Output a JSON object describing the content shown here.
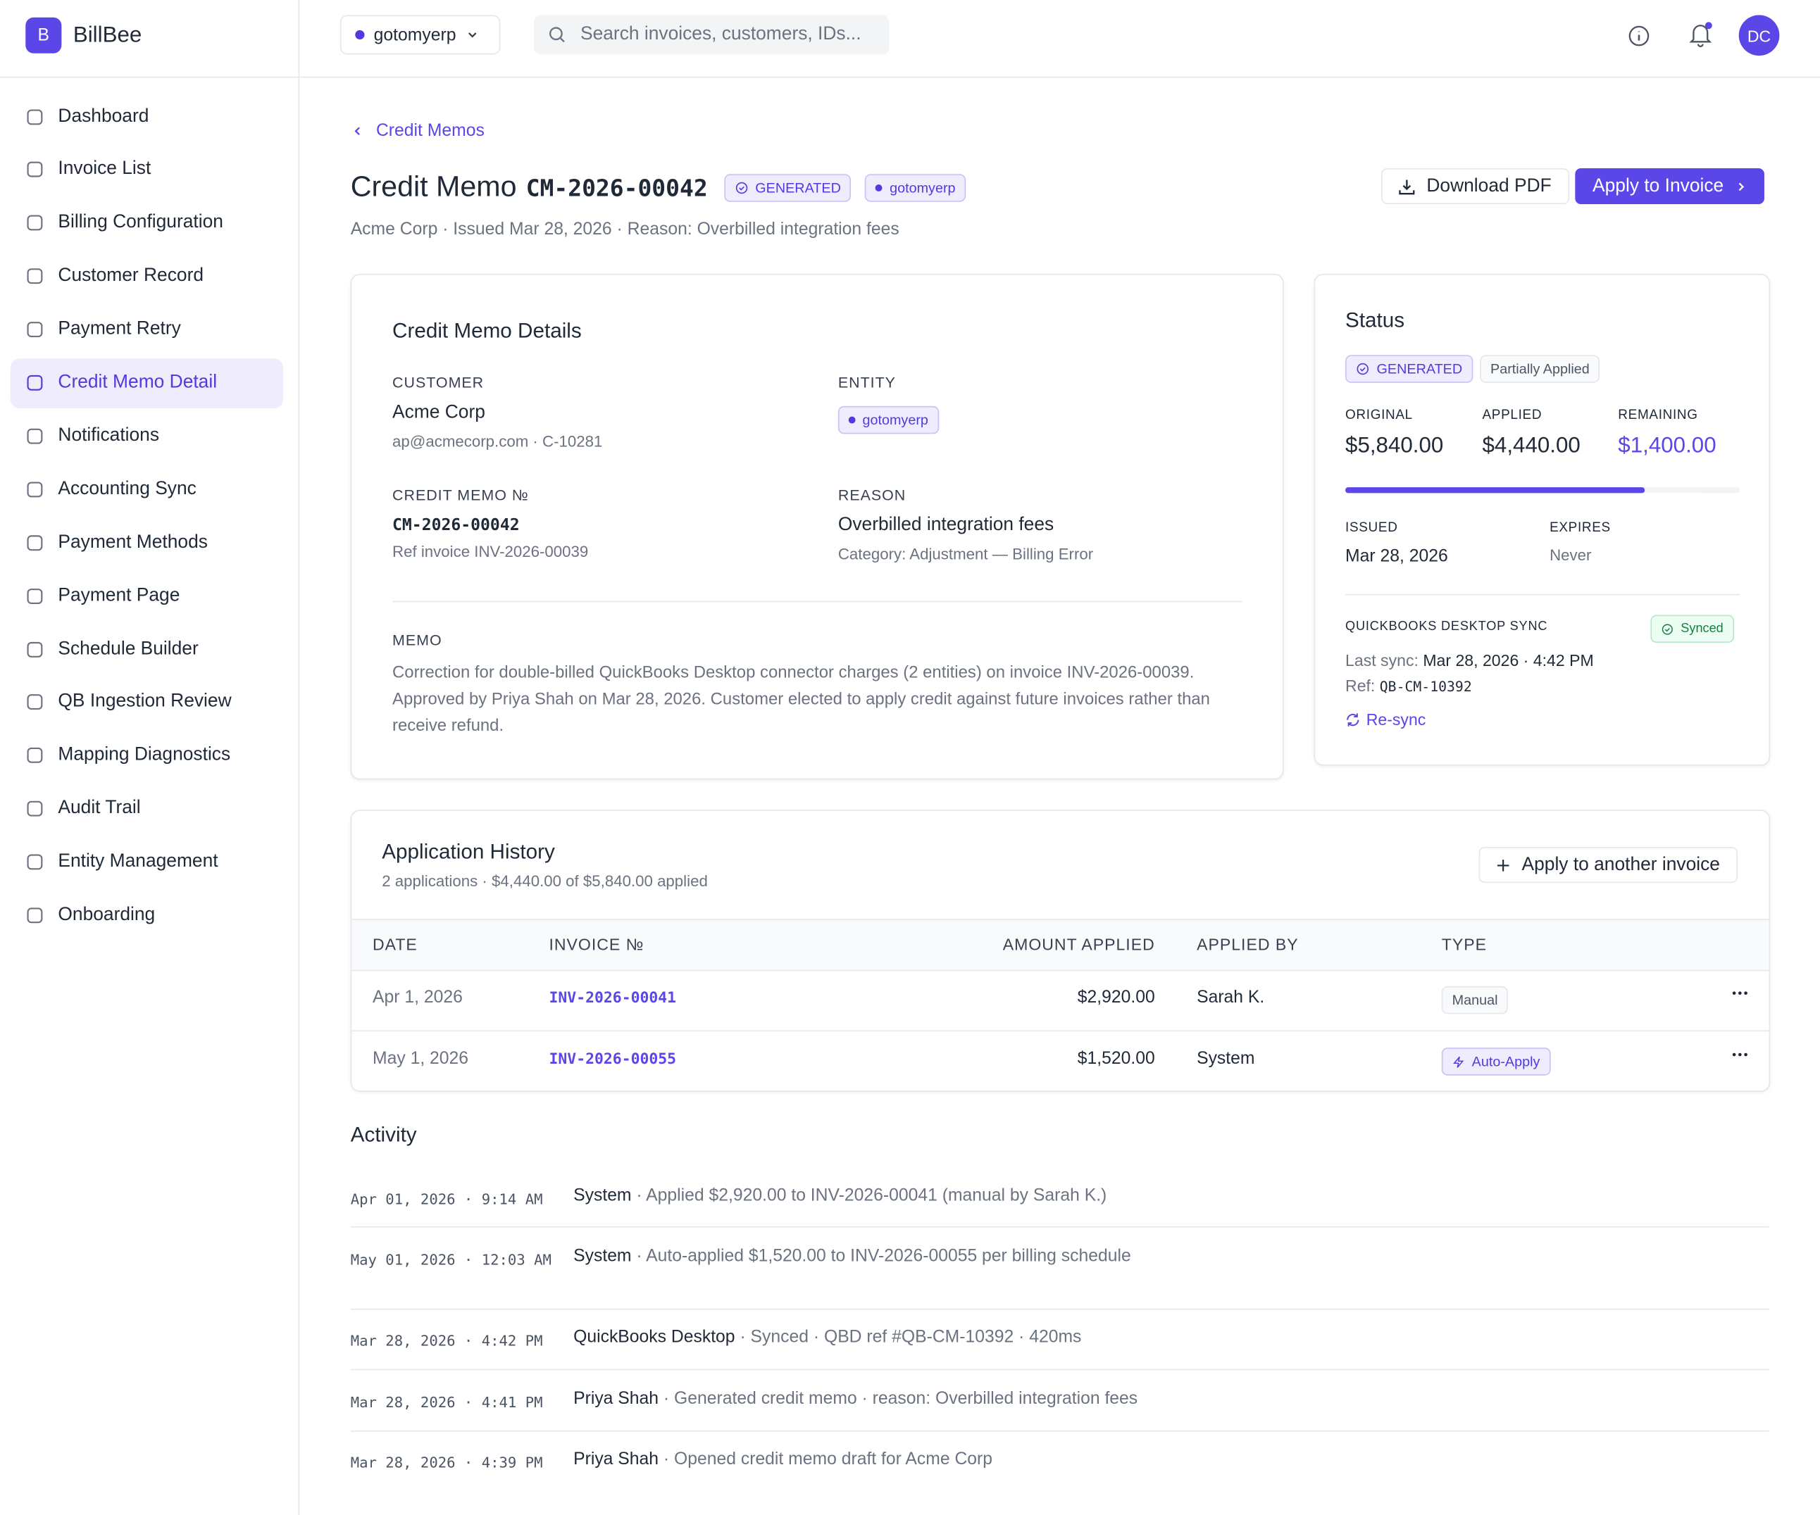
{
  "brand": {
    "logo": "B",
    "name": "BillBee"
  },
  "nav": [
    "Dashboard",
    "Invoice List",
    "Billing Configuration",
    "Customer Record",
    "Payment Retry",
    "Credit Memo Detail",
    "Notifications",
    "Accounting Sync",
    "Payment Methods",
    "Payment Page",
    "Schedule Builder",
    "QB Ingestion Review",
    "Mapping Diagnostics",
    "Audit Trail",
    "Entity Management",
    "Onboarding"
  ],
  "topbar": {
    "entity": "gotomyerp",
    "search_placeholder": "Search invoices, customers, IDs...",
    "avatar": "DC"
  },
  "breadcrumb": "Credit Memos",
  "page": {
    "title": "Credit Memo",
    "memo_id": "CM-2026-00042",
    "badge_status": "GENERATED",
    "badge_entity": "gotomyerp",
    "subtitle": "Acme Corp · Issued Mar 28, 2026 · Reason: Overbilled integration fees",
    "download": "Download PDF",
    "apply": "Apply to Invoice"
  },
  "details": {
    "title": "Credit Memo Details",
    "customer": {
      "label": "CUSTOMER",
      "name": "Acme Corp",
      "sub": "ap@acmecorp.com · C-10281"
    },
    "entity": {
      "label": "ENTITY",
      "value": "gotomyerp"
    },
    "number": {
      "label": "CREDIT MEMO №",
      "value": "CM-2026-00042",
      "sub": "Ref invoice INV-2026-00039"
    },
    "reason": {
      "label": "REASON",
      "value": "Overbilled integration fees",
      "sub": "Category: Adjustment — Billing Error"
    },
    "memo": {
      "label": "MEMO",
      "text": "Correction for double-billed QuickBooks Desktop connector charges (2 entities) on invoice INV-2026-00039. Approved by Priya Shah on Mar 28, 2026. Customer elected to apply credit against future invoices rather than receive refund."
    }
  },
  "status": {
    "title": "Status",
    "badge_status": "GENERATED",
    "badge_applied": "Partially Applied",
    "original": {
      "label": "ORIGINAL",
      "value": "$5,840.00"
    },
    "applied": {
      "label": "APPLIED",
      "value": "$4,440.00"
    },
    "remaining": {
      "label": "REMAINING",
      "value": "$1,400.00"
    },
    "issued": {
      "label": "ISSUED",
      "value": "Mar 28, 2026"
    },
    "expires": {
      "label": "EXPIRES",
      "value": "Never"
    },
    "sync": {
      "label": "QUICKBOOKS DESKTOP SYNC",
      "badge": "Synced",
      "last_label": "Last sync:",
      "last_value": "Mar 28, 2026 · 4:42 PM",
      "ref_label": "Ref:",
      "ref_value": "QB-CM-10392",
      "resync": "Re-sync"
    }
  },
  "history": {
    "title": "Application History",
    "subtitle": "2 applications · $4,440.00 of $5,840.00 applied",
    "action": "Apply to another invoice",
    "columns": [
      "DATE",
      "INVOICE №",
      "AMOUNT APPLIED",
      "APPLIED BY",
      "TYPE"
    ],
    "rows": [
      [
        "Apr 1, 2026",
        "INV-2026-00041",
        "$2,920.00",
        "Sarah K.",
        "Manual"
      ],
      [
        "May 1, 2026",
        "INV-2026-00055",
        "$1,520.00",
        "System",
        "Auto-Apply"
      ]
    ]
  },
  "activity": {
    "title": "Activity",
    "items": [
      {
        "time": "Apr 01, 2026 · 9:14 AM",
        "actor": "System",
        "text": "· Applied $2,920.00 to INV-2026-00041 (manual by Sarah K.)"
      },
      {
        "time": "May 01, 2026 · 12:03 AM",
        "actor": "System",
        "text": "· Auto-applied $1,520.00 to INV-2026-00055 per billing schedule"
      },
      {
        "time": "Mar 28, 2026 · 4:42 PM",
        "actor": "QuickBooks Desktop",
        "text": "· Synced · QBD ref #QB-CM-10392 · 420ms"
      },
      {
        "time": "Mar 28, 2026 · 4:41 PM",
        "actor": "Priya Shah",
        "text": "· Generated credit memo · reason: Overbilled integration fees"
      },
      {
        "time": "Mar 28, 2026 · 4:39 PM",
        "actor": "Priya Shah",
        "text": "· Opened credit memo draft for Acme Corp"
      }
    ]
  }
}
